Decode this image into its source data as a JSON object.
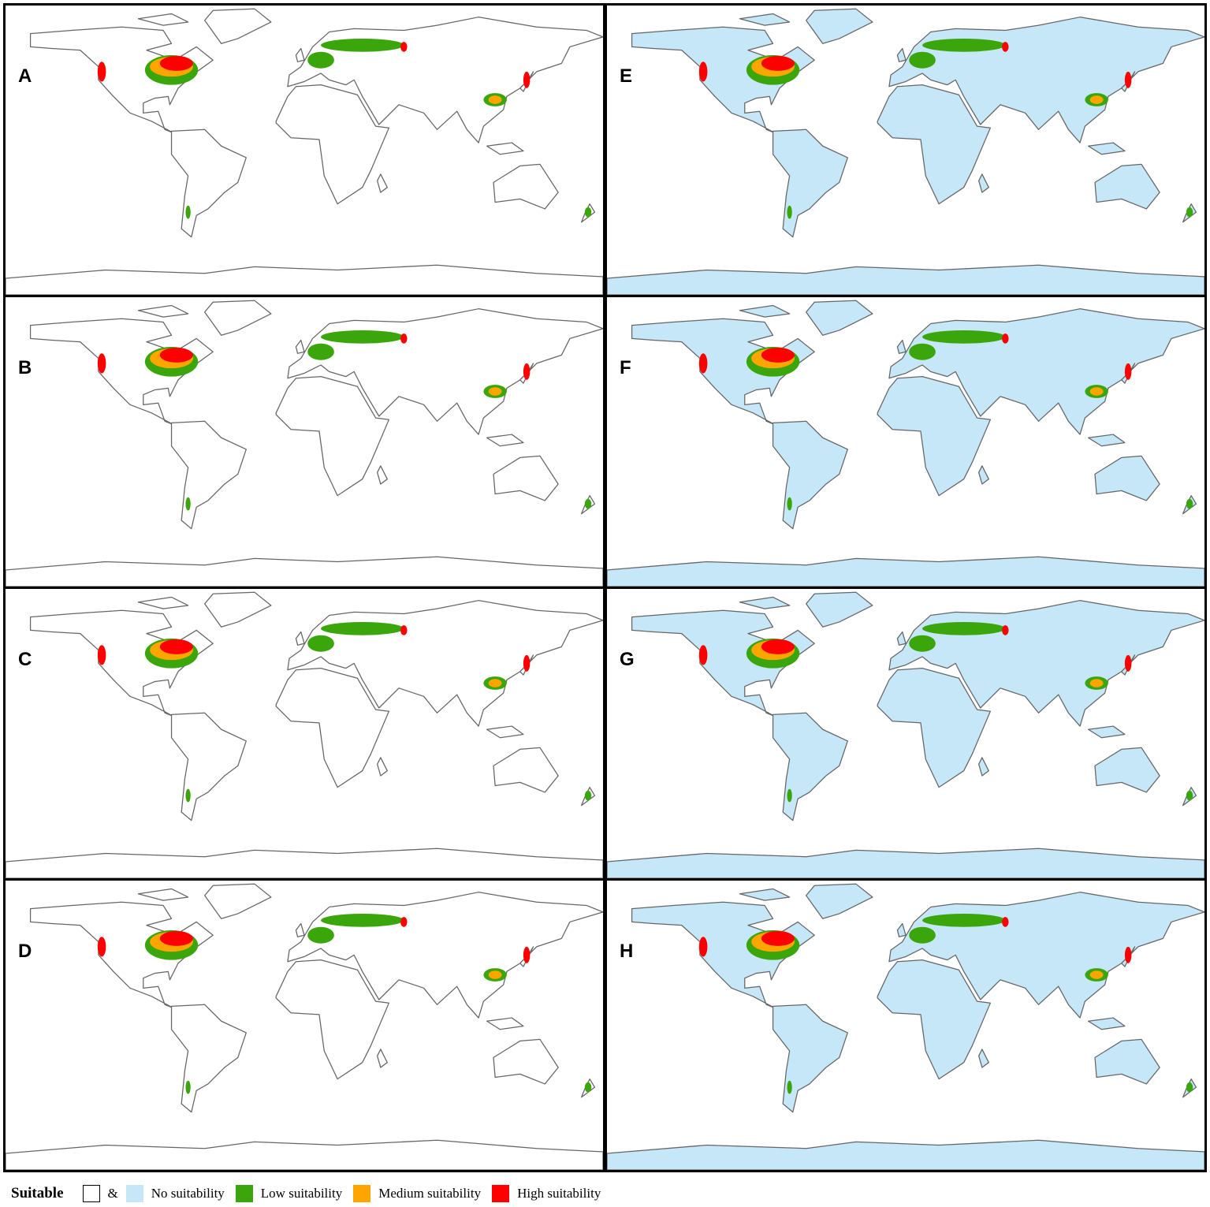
{
  "panels": [
    {
      "label": "A",
      "land": "#ffffff"
    },
    {
      "label": "B",
      "land": "#ffffff"
    },
    {
      "label": "C",
      "land": "#ffffff"
    },
    {
      "label": "D",
      "land": "#ffffff"
    },
    {
      "label": "E",
      "land": "#c6e7f8"
    },
    {
      "label": "F",
      "land": "#c6e7f8"
    },
    {
      "label": "G",
      "land": "#c6e7f8"
    },
    {
      "label": "H",
      "land": "#c6e7f8"
    }
  ],
  "legend": {
    "title": "Suitable",
    "joiner": "&",
    "items": [
      {
        "label": "No suitability",
        "colors": [
          "#ffffff",
          "#c6e7f8"
        ]
      },
      {
        "label": "Low suitability",
        "colors": [
          "#3aa60c"
        ]
      },
      {
        "label": "Medium suitability",
        "colors": [
          "#ffa500"
        ]
      },
      {
        "label": "High suitability",
        "colors": [
          "#ff0000"
        ]
      }
    ]
  }
}
